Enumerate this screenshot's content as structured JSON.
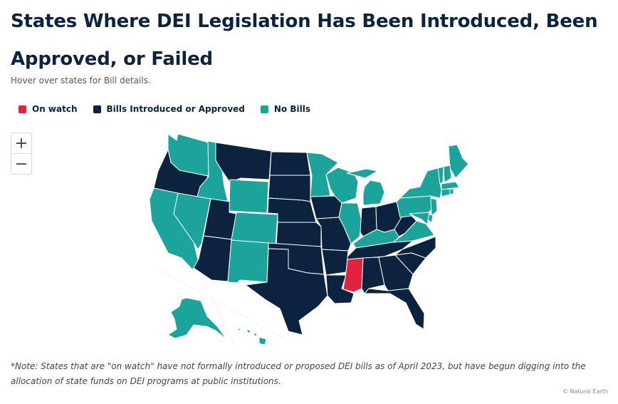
{
  "title": "States Where DEI Legislation Has Been Introduced, Been Approved, or Failed",
  "subtitle": "Hover over states for Bill details.",
  "legend": [
    {
      "label": "On watch",
      "color": "#e0243d"
    },
    {
      "label": "Bills Introduced or Approved",
      "color": "#0c2340"
    },
    {
      "label": "No Bills",
      "color": "#1ba39c"
    }
  ],
  "zoom": {
    "in_label": "+",
    "out_label": "−"
  },
  "status_colors": {
    "watch": "#e0243d",
    "bills": "#0c2340",
    "none": "#1ba39c"
  },
  "states": [
    {
      "name": "Washington",
      "status": "none"
    },
    {
      "name": "Oregon",
      "status": "bills"
    },
    {
      "name": "California",
      "status": "none"
    },
    {
      "name": "Idaho",
      "status": "none"
    },
    {
      "name": "Nevada",
      "status": "none"
    },
    {
      "name": "Utah",
      "status": "bills"
    },
    {
      "name": "Arizona",
      "status": "bills"
    },
    {
      "name": "Montana",
      "status": "bills"
    },
    {
      "name": "Wyoming",
      "status": "none"
    },
    {
      "name": "Colorado",
      "status": "none"
    },
    {
      "name": "New Mexico",
      "status": "none"
    },
    {
      "name": "North Dakota",
      "status": "bills"
    },
    {
      "name": "South Dakota",
      "status": "bills"
    },
    {
      "name": "Nebraska",
      "status": "bills"
    },
    {
      "name": "Kansas",
      "status": "bills"
    },
    {
      "name": "Oklahoma",
      "status": "bills"
    },
    {
      "name": "Texas",
      "status": "bills"
    },
    {
      "name": "Minnesota",
      "status": "none"
    },
    {
      "name": "Iowa",
      "status": "bills"
    },
    {
      "name": "Missouri",
      "status": "bills"
    },
    {
      "name": "Arkansas",
      "status": "bills"
    },
    {
      "name": "Louisiana",
      "status": "bills"
    },
    {
      "name": "Wisconsin",
      "status": "none"
    },
    {
      "name": "Illinois",
      "status": "none"
    },
    {
      "name": "Michigan",
      "status": "none"
    },
    {
      "name": "Indiana",
      "status": "bills"
    },
    {
      "name": "Ohio",
      "status": "bills"
    },
    {
      "name": "Kentucky",
      "status": "none"
    },
    {
      "name": "Tennessee",
      "status": "bills"
    },
    {
      "name": "Mississippi",
      "status": "watch"
    },
    {
      "name": "Alabama",
      "status": "bills"
    },
    {
      "name": "Georgia",
      "status": "bills"
    },
    {
      "name": "Florida",
      "status": "bills"
    },
    {
      "name": "South Carolina",
      "status": "bills"
    },
    {
      "name": "North Carolina",
      "status": "bills"
    },
    {
      "name": "Virginia",
      "status": "none"
    },
    {
      "name": "West Virginia",
      "status": "bills"
    },
    {
      "name": "Pennsylvania",
      "status": "none"
    },
    {
      "name": "New York",
      "status": "none"
    },
    {
      "name": "Maine",
      "status": "none"
    },
    {
      "name": "Vermont",
      "status": "none"
    },
    {
      "name": "New Hampshire",
      "status": "none"
    },
    {
      "name": "Massachusetts",
      "status": "none"
    },
    {
      "name": "Connecticut",
      "status": "none"
    },
    {
      "name": "Rhode Island",
      "status": "none"
    },
    {
      "name": "New Jersey",
      "status": "none"
    },
    {
      "name": "Delaware",
      "status": "none"
    },
    {
      "name": "Maryland",
      "status": "none"
    },
    {
      "name": "Alaska",
      "status": "none"
    },
    {
      "name": "Hawaii",
      "status": "none"
    }
  ],
  "note": "*Note: States that are \"on watch\" have not formally introduced or proposed DEI bills as of April 2023, but have begun digging into the allocation of state funds on DEI programs at public institutions.",
  "credit": "© Natural Earth"
}
